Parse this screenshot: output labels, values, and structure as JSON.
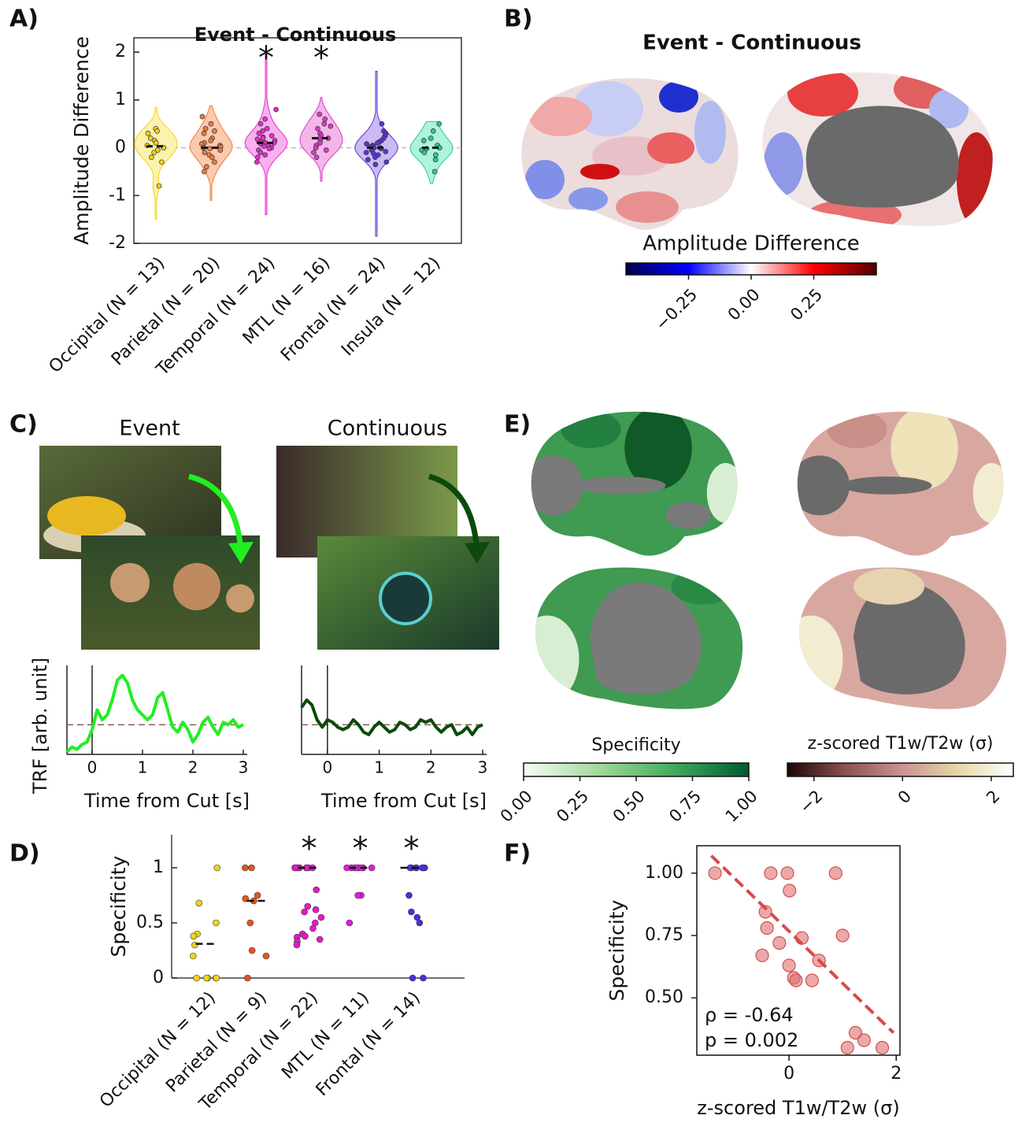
{
  "chart_data": [
    {
      "type": "violin",
      "panel_label": "A)",
      "title": "Event - Continuous",
      "ylabel": "Amplitude Difference",
      "categories": [
        "Occipital (N = 13)",
        "Parietal (N = 20)",
        "Temporal (N = 24)",
        "MTL (N = 16)",
        "Frontal (N = 24)",
        "Insula (N = 12)"
      ],
      "colors": [
        "#f2d21b",
        "#ee7a3a",
        "#e42ccf",
        "#d83cc8",
        "#5b35d6",
        "#2cc99a"
      ],
      "fill_colors": [
        "#fbf1a6",
        "#fac4a6",
        "#f7a7ea",
        "#f3aee6",
        "#c7b2f2",
        "#a6f2d6"
      ],
      "points": [
        [
          0.4,
          0.35,
          0.3,
          0.2,
          0.15,
          0.1,
          0.05,
          0.0,
          -0.05,
          -0.1,
          -0.2,
          -0.3,
          -0.8
        ],
        [
          0.65,
          0.5,
          0.4,
          0.35,
          0.3,
          0.2,
          0.15,
          0.1,
          0.08,
          0.05,
          0.02,
          0.0,
          -0.02,
          -0.05,
          -0.1,
          -0.15,
          -0.2,
          -0.3,
          -0.4,
          -0.5
        ],
        [
          0.8,
          0.6,
          0.5,
          0.4,
          0.35,
          0.3,
          0.25,
          0.22,
          0.2,
          0.18,
          0.15,
          0.12,
          0.1,
          0.1,
          0.08,
          0.05,
          0.03,
          0.0,
          -0.02,
          -0.05,
          -0.1,
          -0.15,
          -0.2,
          -0.3
        ],
        [
          0.7,
          0.6,
          0.5,
          0.45,
          0.4,
          0.3,
          0.25,
          0.2,
          0.2,
          0.15,
          0.1,
          0.05,
          0.0,
          -0.05,
          -0.1,
          -0.2
        ],
        [
          0.5,
          0.35,
          0.3,
          0.25,
          0.2,
          0.15,
          0.12,
          0.1,
          0.08,
          0.05,
          0.03,
          0.02,
          0.0,
          0.0,
          -0.02,
          -0.05,
          -0.08,
          -0.1,
          -0.12,
          -0.15,
          -0.2,
          -0.25,
          -0.3,
          -0.35
        ],
        [
          0.5,
          0.35,
          0.2,
          0.15,
          0.05,
          0.0,
          -0.02,
          -0.05,
          -0.1,
          -0.15,
          -0.25,
          -0.5
        ]
      ],
      "ranges": [
        [
          -1.5,
          0.85
        ],
        [
          -1.1,
          0.88
        ],
        [
          -1.4,
          1.95
        ],
        [
          -0.7,
          1.05
        ],
        [
          -1.85,
          1.6
        ],
        [
          -0.75,
          0.55
        ]
      ],
      "medians": [
        0.03,
        0.0,
        0.1,
        0.2,
        0.0,
        0.0
      ],
      "significance": [
        null,
        null,
        "*",
        "*",
        null,
        null
      ],
      "hline": 0,
      "ylim": [
        -2,
        2.3
      ],
      "yticks": [
        -2,
        -1,
        0,
        1,
        2
      ]
    },
    {
      "type": "colormap",
      "panel_label": "B)",
      "title": "Event - Continuous",
      "label": "Amplitude Difference",
      "lim": [
        -0.5,
        0.5
      ],
      "ticks": [
        {
          "value": -0.25,
          "label": "−0.25"
        },
        {
          "value": 0,
          "label": "0.00"
        },
        {
          "value": 0.25,
          "label": "0.25"
        }
      ],
      "colors": [
        "#000050",
        "#0000ff",
        "#ffffff",
        "#ff0000",
        "#500000"
      ]
    },
    {
      "type": "line",
      "panel_label": "C)",
      "title": "Event",
      "ylabel": "TRF [arb. unit]",
      "xlabel": "Time from Cut [s]",
      "color": "#22ee22",
      "x": [
        -0.5,
        -0.4,
        -0.3,
        -0.2,
        -0.1,
        0,
        0.1,
        0.2,
        0.3,
        0.4,
        0.5,
        0.6,
        0.7,
        0.8,
        0.9,
        1,
        1.1,
        1.2,
        1.3,
        1.4,
        1.5,
        1.6,
        1.7,
        1.8,
        1.9,
        2,
        2.1,
        2.2,
        2.3,
        2.4,
        2.5,
        2.6,
        2.7,
        2.8,
        2.9,
        3
      ],
      "values": [
        -0.55,
        -0.45,
        -0.5,
        -0.4,
        -0.35,
        -0.1,
        0.3,
        0.1,
        0.2,
        0.5,
        0.9,
        1.0,
        0.85,
        0.5,
        0.3,
        0.2,
        0.1,
        0.2,
        0.55,
        0.65,
        0.3,
        -0.05,
        -0.15,
        0.05,
        -0.1,
        -0.35,
        -0.2,
        0.05,
        0.15,
        -0.05,
        -0.2,
        0.05,
        0.0,
        0.1,
        -0.05,
        0.0
      ],
      "hline": 0,
      "vline": 0,
      "xlim": [
        -0.5,
        3
      ],
      "ylim": [
        -0.6,
        1.2
      ],
      "xticks": [
        0,
        1,
        2,
        3
      ]
    },
    {
      "type": "line",
      "title": "Continuous",
      "xlabel": "Time from Cut [s]",
      "color": "#0b4a0b",
      "x": [
        -0.5,
        -0.4,
        -0.3,
        -0.2,
        -0.1,
        0,
        0.1,
        0.2,
        0.3,
        0.4,
        0.5,
        0.6,
        0.7,
        0.8,
        0.9,
        1,
        1.1,
        1.2,
        1.3,
        1.4,
        1.5,
        1.6,
        1.7,
        1.8,
        1.9,
        2,
        2.1,
        2.2,
        2.3,
        2.4,
        2.5,
        2.6,
        2.7,
        2.8,
        2.9,
        3
      ],
      "values": [
        0.35,
        0.5,
        0.4,
        0.1,
        -0.05,
        0.1,
        0.05,
        -0.05,
        -0.1,
        -0.05,
        0.1,
        0.0,
        -0.15,
        -0.2,
        -0.05,
        0.05,
        -0.05,
        -0.15,
        -0.1,
        0.05,
        0.0,
        -0.1,
        -0.05,
        0.1,
        0.05,
        0.1,
        -0.05,
        -0.15,
        -0.05,
        0.0,
        -0.2,
        -0.15,
        -0.05,
        -0.2,
        -0.05,
        0.0
      ],
      "hline": 0,
      "vline": 0,
      "xlim": [
        -0.5,
        3
      ],
      "ylim": [
        -0.6,
        1.2
      ],
      "xticks": [
        0,
        1,
        2,
        3
      ]
    },
    {
      "type": "strip",
      "panel_label": "D)",
      "ylabel": "Specificity",
      "categories": [
        "Occipital (N = 12)",
        "Parietal (N = 9)",
        "Temporal (N = 22)",
        "MTL (N = 11)",
        "Frontal (N = 14)"
      ],
      "colors": [
        "#f2d21b",
        "#e8541a",
        "#e619c8",
        "#e619e0",
        "#4a2ee0"
      ],
      "points": [
        [
          1,
          0.68,
          0.5,
          0.4,
          0.38,
          0.3,
          0.2,
          0,
          0,
          0,
          0,
          0
        ],
        [
          1,
          1,
          0.75,
          0.72,
          0.7,
          0.5,
          0.25,
          0.2,
          0
        ],
        [
          1,
          1,
          1,
          1,
          1,
          1,
          1,
          1,
          1,
          0.8,
          0.65,
          0.62,
          0.6,
          0.55,
          0.5,
          0.45,
          0.4,
          0.38,
          0.37,
          0.35,
          0.33,
          0.3
        ],
        [
          1,
          1,
          1,
          1,
          1,
          1,
          1,
          1,
          0.75,
          0.75,
          0.5
        ],
        [
          1,
          1,
          1,
          1,
          1,
          1,
          1,
          1,
          0.75,
          0.6,
          0.55,
          0.5,
          0,
          0
        ]
      ],
      "medians": [
        0.31,
        0.7,
        1,
        1,
        1
      ],
      "significance": [
        null,
        null,
        "*",
        "*",
        "*"
      ],
      "ylim": [
        0,
        1.3
      ],
      "yticks": [
        0,
        0.5,
        1
      ]
    },
    {
      "type": "colormap",
      "panel_label": "E)",
      "label": "Specificity",
      "lim": [
        0,
        1
      ],
      "ticks": [
        {
          "value": 0,
          "label": "0.00"
        },
        {
          "value": 0.25,
          "label": "0.25"
        },
        {
          "value": 0.5,
          "label": "0.50"
        },
        {
          "value": 0.75,
          "label": "0.75"
        },
        {
          "value": 1,
          "label": "1.00"
        }
      ],
      "colors": [
        "#f7fcf5",
        "#a1d99b",
        "#41ab5d",
        "#005a32"
      ]
    },
    {
      "type": "colormap",
      "label": "z-scored T1w/T2w (σ)",
      "lim": [
        -2.6,
        2.5
      ],
      "ticks": [
        {
          "value": -2,
          "label": "−2"
        },
        0,
        2
      ],
      "colors": [
        "#1e0505",
        "#8a5050",
        "#c99090",
        "#e6d6a6",
        "#ffffff"
      ]
    },
    {
      "type": "scatter",
      "panel_label": "F)",
      "xlabel": "z-scored T1w/T2w (σ)",
      "ylabel": "Specificity",
      "color": "#e07070",
      "x": [
        -1.38,
        -0.34,
        -0.03,
        0.01,
        0.87,
        -0.44,
        -0.41,
        -0.18,
        0.24,
        -0.5,
        0.0,
        0.56,
        1.0,
        0.09,
        0.13,
        0.43,
        1.24,
        1.4,
        1.09,
        1.74
      ],
      "values": [
        1.0,
        1.0,
        1.0,
        0.93,
        1.0,
        0.845,
        0.78,
        0.72,
        0.74,
        0.67,
        0.63,
        0.65,
        0.75,
        0.58,
        0.57,
        0.57,
        0.36,
        0.33,
        0.3,
        0.3
      ],
      "fit_line": {
        "x": [
          -1.45,
          1.95
        ],
        "y": [
          1.07,
          0.36
        ]
      },
      "annotations": [
        "ρ = -0.64",
        "p = 0.002"
      ],
      "xlim": [
        -1.72,
        2.07
      ],
      "ylim": [
        0.27,
        1.11
      ],
      "xticks": [
        0,
        2
      ],
      "yticks": [
        {
          "value": 0.5,
          "label": "0.50"
        },
        {
          "value": 0.75,
          "label": "0.75"
        },
        {
          "value": 1,
          "label": "1.00"
        }
      ]
    }
  ]
}
